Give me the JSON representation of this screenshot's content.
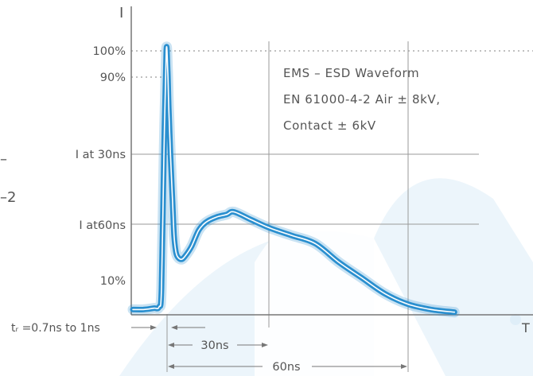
{
  "chart_data": {
    "type": "line",
    "title_lines": [
      "EMS – ESD Waveform",
      "EN 61000-4-2 Air ± 8kV,",
      "Contact ± 6kV"
    ],
    "y_axis_label": "I",
    "x_axis_label": "T",
    "y_ticks": [
      "100%",
      "90%",
      "I at 30ns",
      "I at60ns",
      "10%"
    ],
    "x_unit": "ns",
    "y_unit": "% of peak current",
    "xlim": [
      -5,
      70
    ],
    "ylim": [
      0,
      115
    ],
    "series": [
      {
        "x": [
          -5,
          -3,
          -1,
          0,
          0.3,
          0.6,
          0.9,
          1.2,
          1.5,
          2.0,
          2.5,
          3.0,
          3.5,
          4,
          5,
          6,
          8,
          10,
          12,
          15,
          18,
          20,
          25,
          30,
          35,
          40,
          45,
          50,
          55,
          60,
          65,
          70
        ],
        "y": [
          2,
          2,
          2.5,
          3,
          10,
          60,
          100,
          92,
          78,
          60,
          45,
          30,
          24,
          22,
          21,
          22,
          26,
          32,
          35,
          37,
          38,
          39,
          36,
          33,
          30,
          27,
          20,
          14,
          8,
          4,
          2,
          1
        ],
        "color": "#2a8fcf"
      }
    ],
    "annotations": {
      "rise_time": "tᵣ =0.7ns to 1ns",
      "span_30": "30ns",
      "span_60": "60ns"
    },
    "partial_left_text": [
      "–",
      "–2"
    ],
    "grid": true,
    "colors": {
      "curve": "#2a8fcf",
      "axis": "#777777",
      "grid": "#9a9a9a",
      "watermark": "#dcecf8"
    }
  }
}
